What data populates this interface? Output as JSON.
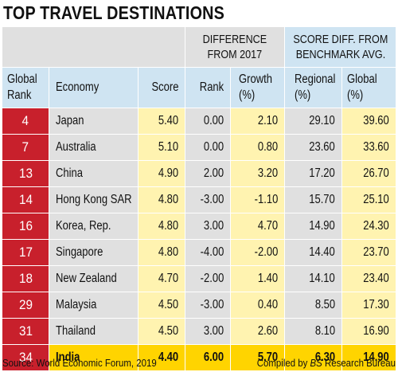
{
  "title": "TOP TRAVEL DESTINATIONS",
  "group_headers": {
    "difference": [
      "DIFFERENCE",
      "FROM 2017"
    ],
    "benchmark": [
      "SCORE DIFF. FROM",
      "BENCHMARK AVG."
    ]
  },
  "columns": {
    "global_rank": [
      "Global",
      "Rank"
    ],
    "economy": "Economy",
    "score": "Score",
    "rank": "Rank",
    "growth": [
      "Growth",
      "(%)"
    ],
    "regional": [
      "Regional",
      "(%)"
    ],
    "global": [
      "Global",
      "(%)"
    ]
  },
  "rows": [
    {
      "global_rank": "4",
      "economy": "Japan",
      "score": "5.40",
      "rank": "0.00",
      "growth": "2.10",
      "regional": "29.10",
      "global": "39.60"
    },
    {
      "global_rank": "7",
      "economy": "Australia",
      "score": "5.10",
      "rank": "0.00",
      "growth": "0.80",
      "regional": "23.60",
      "global": "33.60"
    },
    {
      "global_rank": "13",
      "economy": "China",
      "score": "4.90",
      "rank": "2.00",
      "growth": "3.20",
      "regional": "17.20",
      "global": "26.70"
    },
    {
      "global_rank": "14",
      "economy": "Hong Kong SAR",
      "score": "4.80",
      "rank": "-3.00",
      "growth": "-1.10",
      "regional": "15.70",
      "global": "25.10"
    },
    {
      "global_rank": "16",
      "economy": "Korea, Rep.",
      "score": "4.80",
      "rank": "3.00",
      "growth": "4.70",
      "regional": "14.90",
      "global": "24.30"
    },
    {
      "global_rank": "17",
      "economy": "Singapore",
      "score": "4.80",
      "rank": "-4.00",
      "growth": "-2.00",
      "regional": "14.40",
      "global": "23.70"
    },
    {
      "global_rank": "18",
      "economy": "New Zealand",
      "score": "4.70",
      "rank": "-2.00",
      "growth": "1.40",
      "regional": "14.10",
      "global": "23.40"
    },
    {
      "global_rank": "29",
      "economy": "Malaysia",
      "score": "4.50",
      "rank": "-3.00",
      "growth": "0.40",
      "regional": "8.50",
      "global": "17.30"
    },
    {
      "global_rank": "31",
      "economy": "Thailand",
      "score": "4.50",
      "rank": "3.00",
      "growth": "2.60",
      "regional": "8.10",
      "global": "16.90"
    },
    {
      "global_rank": "34",
      "economy": "India",
      "score": "4.40",
      "rank": "6.00",
      "growth": "5.70",
      "regional": "6.30",
      "global": "14.90",
      "highlight": true
    }
  ],
  "footer": {
    "source": "Source: World Economic Forum, 2019",
    "compiled_prefix": "Compiled by ",
    "compiled_brand": "BS",
    "compiled_suffix": " Research Bureau"
  },
  "colors": {
    "rank_red": "#c8202c",
    "gray": "#e0e0e0",
    "yellow": "#fff3b0",
    "blue": "#cfe4f2",
    "highlight": "#ffd400"
  }
}
